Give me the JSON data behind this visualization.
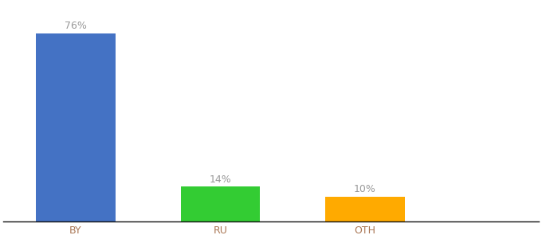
{
  "categories": [
    "BY",
    "RU",
    "OTH"
  ],
  "values": [
    76,
    14,
    10
  ],
  "bar_colors": [
    "#4472c4",
    "#33cc33",
    "#ffaa00"
  ],
  "labels": [
    "76%",
    "14%",
    "10%"
  ],
  "ylim": [
    0,
    88
  ],
  "background_color": "#ffffff",
  "label_color": "#999999",
  "tick_label_color": "#aa7755",
  "bar_width": 0.55,
  "label_fontsize": 9,
  "tick_fontsize": 9,
  "x_positions": [
    0,
    1,
    2
  ],
  "xlim": [
    -0.5,
    3.2
  ]
}
